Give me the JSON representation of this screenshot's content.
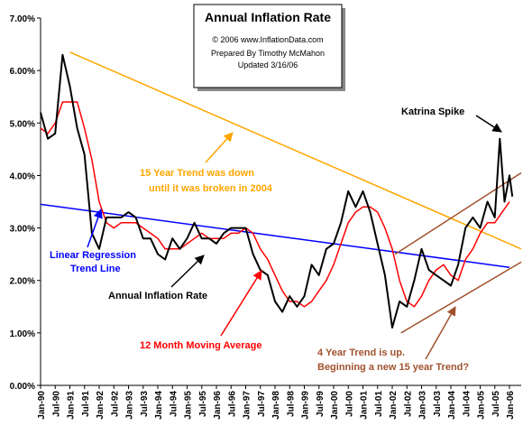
{
  "chart_data": {
    "type": "line",
    "title": "Annual  Inflation Rate",
    "copyright": "© 2006 www.InflationData.com",
    "author": "Prepared By Timothy McMahon",
    "updated": "Updated 3/16/06",
    "xlim": [
      1990,
      2006.4
    ],
    "ylim": [
      0,
      7
    ],
    "yticks": [
      {
        "value": 0,
        "label": "0.00%"
      },
      {
        "value": 1,
        "label": "1.00%"
      },
      {
        "value": 2,
        "label": "2.00%"
      },
      {
        "value": 3,
        "label": "3.00%"
      },
      {
        "value": 4,
        "label": "4.00%"
      },
      {
        "value": 5,
        "label": "5.00%"
      },
      {
        "value": 6,
        "label": "6.00%"
      },
      {
        "value": 7,
        "label": "7.00%"
      }
    ],
    "xticks": [
      {
        "value": 1990,
        "label": "Jan-90"
      },
      {
        "value": 1990.5,
        "label": "Jul-90"
      },
      {
        "value": 1991,
        "label": "Jan-91"
      },
      {
        "value": 1991.5,
        "label": "Jul-91"
      },
      {
        "value": 1992,
        "label": "Jan-92"
      },
      {
        "value": 1992.5,
        "label": "Jul-92"
      },
      {
        "value": 1993,
        "label": "Jan-93"
      },
      {
        "value": 1993.5,
        "label": "Jul-93"
      },
      {
        "value": 1994,
        "label": "Jan-94"
      },
      {
        "value": 1994.5,
        "label": "Jul-94"
      },
      {
        "value": 1995,
        "label": "Jan-95"
      },
      {
        "value": 1995.5,
        "label": "Jul-95"
      },
      {
        "value": 1996,
        "label": "Jan-96"
      },
      {
        "value": 1996.5,
        "label": "Jul-96"
      },
      {
        "value": 1997,
        "label": "Jan-97"
      },
      {
        "value": 1997.5,
        "label": "Jul-97"
      },
      {
        "value": 1998,
        "label": "Jan-98"
      },
      {
        "value": 1998.5,
        "label": "Jul-98"
      },
      {
        "value": 1999,
        "label": "Jan-99"
      },
      {
        "value": 1999.5,
        "label": "Jul-99"
      },
      {
        "value": 2000,
        "label": "Jan-00"
      },
      {
        "value": 2000.5,
        "label": "Jul-00"
      },
      {
        "value": 2001,
        "label": "Jan-01"
      },
      {
        "value": 2001.5,
        "label": "Jul-01"
      },
      {
        "value": 2002,
        "label": "Jan-02"
      },
      {
        "value": 2002.5,
        "label": "Jul-02"
      },
      {
        "value": 2003,
        "label": "Jan-03"
      },
      {
        "value": 2003.5,
        "label": "Jul-03"
      },
      {
        "value": 2004,
        "label": "Jan-04"
      },
      {
        "value": 2004.5,
        "label": "Jul-04"
      },
      {
        "value": 2005,
        "label": "Jan-05"
      },
      {
        "value": 2005.5,
        "label": "Jul-05"
      },
      {
        "value": 2006,
        "label": "Jan-06"
      }
    ],
    "series": [
      {
        "name": "Annual Inflation Rate",
        "color": "#000000",
        "x": [
          1990,
          1990.25,
          1990.5,
          1990.75,
          1991,
          1991.25,
          1991.5,
          1991.75,
          1992,
          1992.25,
          1992.5,
          1992.75,
          1993,
          1993.25,
          1993.5,
          1993.75,
          1994,
          1994.25,
          1994.5,
          1994.75,
          1995,
          1995.25,
          1995.5,
          1995.75,
          1996,
          1996.25,
          1996.5,
          1996.75,
          1997,
          1997.25,
          1997.5,
          1997.75,
          1998,
          1998.25,
          1998.5,
          1998.75,
          1999,
          1999.25,
          1999.5,
          1999.75,
          2000,
          2000.25,
          2000.5,
          2000.75,
          2001,
          2001.25,
          2001.5,
          2001.75,
          2002,
          2002.25,
          2002.5,
          2002.75,
          2003,
          2003.25,
          2003.5,
          2003.75,
          2004,
          2004.25,
          2004.5,
          2004.75,
          2005,
          2005.25,
          2005.5,
          2005.67,
          2005.83,
          2006,
          2006.1
        ],
        "values": [
          5.2,
          4.7,
          4.8,
          6.3,
          5.7,
          4.9,
          4.4,
          2.9,
          2.6,
          3.2,
          3.2,
          3.2,
          3.3,
          3.2,
          2.8,
          2.8,
          2.5,
          2.4,
          2.8,
          2.6,
          2.8,
          3.1,
          2.8,
          2.8,
          2.7,
          2.9,
          3.0,
          3.0,
          3.0,
          2.5,
          2.2,
          2.1,
          1.6,
          1.4,
          1.7,
          1.5,
          1.7,
          2.3,
          2.1,
          2.6,
          2.7,
          3.1,
          3.7,
          3.4,
          3.7,
          3.3,
          2.7,
          2.1,
          1.1,
          1.6,
          1.5,
          2.0,
          2.6,
          2.2,
          2.1,
          2.0,
          1.9,
          2.3,
          3.0,
          3.2,
          3.0,
          3.5,
          3.2,
          4.7,
          3.5,
          4.0,
          3.6
        ]
      },
      {
        "name": "12 Month Moving Average",
        "color": "#ff0000",
        "x": [
          1990,
          1990.25,
          1990.5,
          1990.75,
          1991,
          1991.25,
          1991.5,
          1991.75,
          1992,
          1992.25,
          1992.5,
          1992.75,
          1993,
          1993.25,
          1993.5,
          1993.75,
          1994,
          1994.25,
          1994.5,
          1994.75,
          1995,
          1995.25,
          1995.5,
          1995.75,
          1996,
          1996.25,
          1996.5,
          1996.75,
          1997,
          1997.25,
          1997.5,
          1997.75,
          1998,
          1998.25,
          1998.5,
          1998.75,
          1999,
          1999.25,
          1999.5,
          1999.75,
          2000,
          2000.25,
          2000.5,
          2000.75,
          2001,
          2001.25,
          2001.5,
          2001.75,
          2002,
          2002.25,
          2002.5,
          2002.75,
          2003,
          2003.25,
          2003.5,
          2003.75,
          2004,
          2004.25,
          2004.5,
          2004.75,
          2005,
          2005.25,
          2005.5,
          2005.75,
          2006
        ],
        "values": [
          4.9,
          4.8,
          5.0,
          5.4,
          5.4,
          5.4,
          4.9,
          4.3,
          3.5,
          3.1,
          3.0,
          3.1,
          3.1,
          3.1,
          3.0,
          2.9,
          2.8,
          2.6,
          2.6,
          2.6,
          2.7,
          2.8,
          2.9,
          2.8,
          2.8,
          2.8,
          2.9,
          2.9,
          3.0,
          2.9,
          2.6,
          2.4,
          2.1,
          1.8,
          1.6,
          1.6,
          1.5,
          1.6,
          1.8,
          2.0,
          2.3,
          2.7,
          3.1,
          3.3,
          3.4,
          3.4,
          3.3,
          3.0,
          2.6,
          2.0,
          1.6,
          1.5,
          1.7,
          2.0,
          2.2,
          2.3,
          2.1,
          2.0,
          2.4,
          2.6,
          2.9,
          3.1,
          3.1,
          3.3,
          3.5
        ]
      }
    ],
    "trend_lines": [
      {
        "name": "15 Year Trend",
        "color": "#ffa500",
        "x": [
          1991,
          2006.4
        ],
        "values": [
          6.35,
          2.6
        ]
      },
      {
        "name": "Linear Regression",
        "color": "#0000ff",
        "x": [
          1990,
          2006
        ],
        "values": [
          3.45,
          2.25
        ]
      },
      {
        "name": "4 Year Trend upper",
        "color": "#a0522d",
        "x": [
          2002.1,
          2006.4
        ],
        "values": [
          2.5,
          4.05
        ]
      },
      {
        "name": "4 Year Trend lower",
        "color": "#a0522d",
        "x": [
          2002.3,
          2006.4
        ],
        "values": [
          1.0,
          2.35
        ]
      }
    ],
    "annotations": {
      "katrina": "Katrina Spike",
      "trend15_1": "15 Year Trend was down",
      "trend15_2": "until it was broken in 2004",
      "regression_1": "Linear Regression",
      "regression_2": "Trend Line",
      "inflation": "Annual Inflation Rate",
      "moving_avg": "12 Month Moving Average",
      "trend4_1": "4 Year Trend is up.",
      "trend4_2": "Beginning a new 15 year Trend?"
    }
  }
}
